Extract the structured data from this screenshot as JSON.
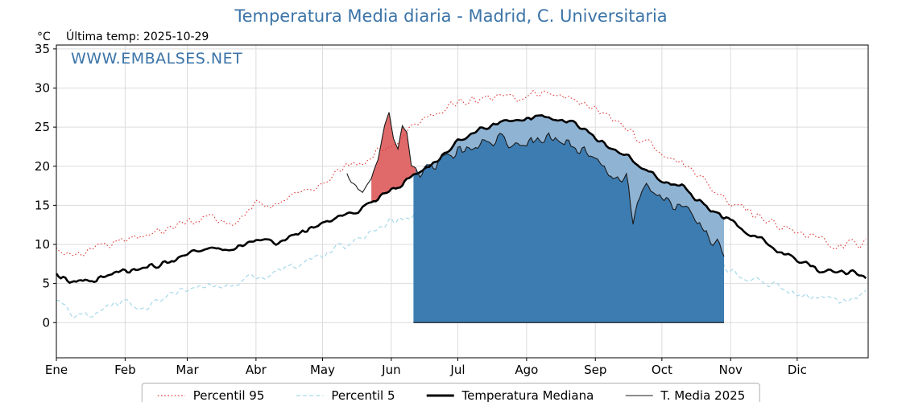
{
  "title": "Temperatura Media diaria - Madrid, C. Universitaria",
  "y_unit": "°C",
  "last_temp_label": "Última temp: 2025-10-29",
  "watermark": "WWW.EMBALSES.NET",
  "colors": {
    "accent_blue": "#3b74a8",
    "grid": "#dcdcdc",
    "fill_above_median": "#e06a6a",
    "fill_below_median": "#8fb3d3",
    "fill_under_curve": "#3d7cb1"
  },
  "legend": [
    {
      "label": "Percentil 95"
    },
    {
      "label": "Percentil 5"
    },
    {
      "label": "Temperatura Mediana"
    },
    {
      "label": "T. Media 2025"
    }
  ],
  "chart_data": {
    "type": "line",
    "title": "Temperatura Media diaria - Madrid, C. Universitaria",
    "ylabel": "°C",
    "ylim": [
      -4.5,
      35.5
    ],
    "yticks": [
      0,
      5,
      10,
      15,
      20,
      25,
      30,
      35
    ],
    "x_unit": "day_of_year",
    "xlim": [
      1,
      367
    ],
    "grid": true,
    "legend_position": "bottom",
    "month_ticks": {
      "days": [
        1,
        32,
        60,
        91,
        121,
        152,
        182,
        213,
        244,
        274,
        305,
        335
      ],
      "labels": [
        "Ene",
        "Feb",
        "Mar",
        "Abr",
        "May",
        "Jun",
        "Jul",
        "Ago",
        "Sep",
        "Oct",
        "Nov",
        "Dic"
      ]
    },
    "series": [
      {
        "name": "Percentil 95",
        "color": "#e03c3c",
        "line": "dotted",
        "width": 1.1,
        "noise": 0.9,
        "anchors": [
          [
            1,
            9.5
          ],
          [
            10,
            8.6
          ],
          [
            20,
            9.8
          ],
          [
            32,
            10.8
          ],
          [
            46,
            11.5
          ],
          [
            60,
            12.8
          ],
          [
            70,
            13.5
          ],
          [
            80,
            12.6
          ],
          [
            91,
            15.2
          ],
          [
            100,
            15.0
          ],
          [
            110,
            16.5
          ],
          [
            121,
            18.0
          ],
          [
            130,
            20.0
          ],
          [
            140,
            20.5
          ],
          [
            152,
            23.0
          ],
          [
            160,
            24.5
          ],
          [
            166,
            26.0
          ],
          [
            175,
            27.5
          ],
          [
            182,
            28.3
          ],
          [
            192,
            28.6
          ],
          [
            200,
            29.0
          ],
          [
            210,
            28.8
          ],
          [
            220,
            29.6
          ],
          [
            228,
            29.2
          ],
          [
            237,
            28.0
          ],
          [
            244,
            27.2
          ],
          [
            252,
            26.3
          ],
          [
            262,
            24.0
          ],
          [
            274,
            21.5
          ],
          [
            283,
            20.3
          ],
          [
            290,
            19.0
          ],
          [
            298,
            16.6
          ],
          [
            305,
            15.3
          ],
          [
            312,
            14.2
          ],
          [
            320,
            13.0
          ],
          [
            328,
            12.0
          ],
          [
            335,
            11.3
          ],
          [
            345,
            10.6
          ],
          [
            355,
            9.8
          ],
          [
            366,
            10.2
          ]
        ]
      },
      {
        "name": "Percentil 5",
        "color": "#a8d9ea",
        "line": "dashed",
        "width": 1.2,
        "noise": 0.8,
        "anchors": [
          [
            1,
            3.2
          ],
          [
            8,
            1.2
          ],
          [
            15,
            1.0
          ],
          [
            24,
            2.2
          ],
          [
            32,
            2.6
          ],
          [
            40,
            1.8
          ],
          [
            50,
            3.0
          ],
          [
            60,
            4.2
          ],
          [
            70,
            5.0
          ],
          [
            80,
            4.4
          ],
          [
            91,
            6.0
          ],
          [
            100,
            6.6
          ],
          [
            110,
            7.6
          ],
          [
            121,
            8.8
          ],
          [
            130,
            9.6
          ],
          [
            140,
            10.8
          ],
          [
            152,
            13.0
          ],
          [
            160,
            13.6
          ],
          [
            170,
            14.8
          ],
          [
            182,
            16.2
          ],
          [
            192,
            16.8
          ],
          [
            202,
            17.2
          ],
          [
            213,
            17.4
          ],
          [
            222,
            17.8
          ],
          [
            232,
            17.0
          ],
          [
            244,
            15.4
          ],
          [
            254,
            14.2
          ],
          [
            264,
            12.8
          ],
          [
            274,
            11.4
          ],
          [
            284,
            9.8
          ],
          [
            294,
            8.2
          ],
          [
            305,
            6.8
          ],
          [
            315,
            5.6
          ],
          [
            325,
            4.6
          ],
          [
            335,
            3.8
          ],
          [
            345,
            3.2
          ],
          [
            355,
            2.6
          ],
          [
            366,
            3.6
          ]
        ]
      },
      {
        "name": "Temperatura Mediana",
        "color": "#000000",
        "line": "solid",
        "width": 2.6,
        "noise": 0.5,
        "anchors": [
          [
            1,
            6.0
          ],
          [
            8,
            5.4
          ],
          [
            15,
            5.2
          ],
          [
            24,
            6.0
          ],
          [
            32,
            6.6
          ],
          [
            40,
            7.0
          ],
          [
            50,
            7.6
          ],
          [
            60,
            8.8
          ],
          [
            70,
            9.6
          ],
          [
            80,
            9.2
          ],
          [
            91,
            10.6
          ],
          [
            100,
            10.2
          ],
          [
            110,
            11.4
          ],
          [
            121,
            12.6
          ],
          [
            130,
            13.6
          ],
          [
            140,
            14.8
          ],
          [
            152,
            17.0
          ],
          [
            160,
            18.2
          ],
          [
            166,
            19.5
          ],
          [
            174,
            21.2
          ],
          [
            182,
            23.4
          ],
          [
            190,
            24.6
          ],
          [
            198,
            25.3
          ],
          [
            206,
            25.6
          ],
          [
            213,
            26.0
          ],
          [
            222,
            26.4
          ],
          [
            230,
            26.0
          ],
          [
            238,
            25.0
          ],
          [
            244,
            23.6
          ],
          [
            252,
            22.2
          ],
          [
            258,
            21.4
          ],
          [
            264,
            20.0
          ],
          [
            270,
            19.0
          ],
          [
            276,
            17.9
          ],
          [
            283,
            17.4
          ],
          [
            290,
            15.6
          ],
          [
            298,
            14.2
          ],
          [
            305,
            13.0
          ],
          [
            312,
            11.8
          ],
          [
            320,
            10.4
          ],
          [
            328,
            9.0
          ],
          [
            335,
            8.0
          ],
          [
            343,
            7.0
          ],
          [
            351,
            6.3
          ],
          [
            359,
            6.4
          ],
          [
            366,
            6.0
          ]
        ]
      },
      {
        "name": "T. Media 2025",
        "color": "#1a1a1a",
        "line": "solid",
        "width": 1.1,
        "noise": 1.5,
        "noise_from": 164,
        "anchors": [
          [
            132,
            19.0
          ],
          [
            135,
            17.6
          ],
          [
            139,
            16.5
          ],
          [
            143,
            18.6
          ],
          [
            146,
            21.0
          ],
          [
            149,
            25.0
          ],
          [
            151,
            26.8
          ],
          [
            153,
            23.6
          ],
          [
            155,
            22.0
          ],
          [
            157,
            25.2
          ],
          [
            159,
            24.6
          ],
          [
            161,
            20.2
          ],
          [
            164,
            19.4
          ],
          [
            170,
            20.2
          ],
          [
            178,
            21.2
          ],
          [
            186,
            22.4
          ],
          [
            196,
            23.2
          ],
          [
            206,
            23.4
          ],
          [
            216,
            23.2
          ],
          [
            224,
            23.8
          ],
          [
            232,
            22.8
          ],
          [
            240,
            21.6
          ],
          [
            248,
            20.0
          ],
          [
            254,
            18.8
          ],
          [
            258,
            18.2
          ],
          [
            261,
            13.6
          ],
          [
            265,
            17.8
          ],
          [
            270,
            16.8
          ],
          [
            276,
            15.8
          ],
          [
            283,
            14.6
          ],
          [
            290,
            12.8
          ],
          [
            296,
            11.2
          ],
          [
            302,
            9.6
          ]
        ]
      }
    ],
    "fills": [
      {
        "name": "2025-above-median",
        "color": "#e06a6a",
        "day_range": [
          143,
          163
        ]
      },
      {
        "name": "2025-below-median",
        "color": "#8fb3d3",
        "day_range": [
          162,
          302
        ]
      },
      {
        "name": "2025-under-curve-to-zero",
        "color": "#3d7cb1",
        "day_range": [
          162,
          302
        ]
      }
    ]
  }
}
